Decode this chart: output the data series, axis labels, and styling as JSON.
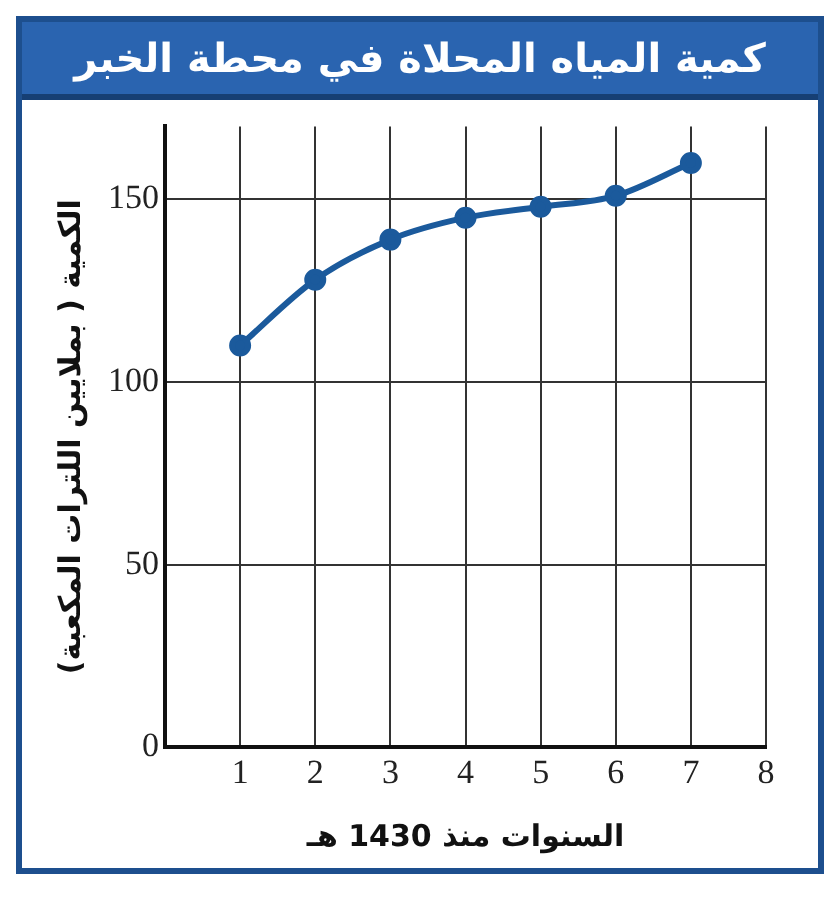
{
  "chart_data": {
    "type": "line",
    "title": "كمية المياه المحلاة في محطة الخبر",
    "xlabel": "السنوات منذ 1430 هـ",
    "ylabel": "الكمية ( بملايين اللترات المكعبة)",
    "x": [
      1,
      2,
      3,
      4,
      5,
      6,
      7
    ],
    "series": [
      {
        "color": "#1b5a9c",
        "values": [
          110,
          128,
          139,
          145,
          148,
          151,
          160
        ]
      }
    ],
    "xlim": [
      0,
      8
    ],
    "xticks": [
      {
        "value": 0,
        "label": null
      },
      1,
      2,
      3,
      4,
      5,
      6,
      7,
      8
    ],
    "ylim": [
      0,
      170
    ],
    "yticks": [
      0,
      50,
      100,
      150
    ],
    "grid": true,
    "marker": "circle",
    "line_style": "solid",
    "legend": false
  }
}
